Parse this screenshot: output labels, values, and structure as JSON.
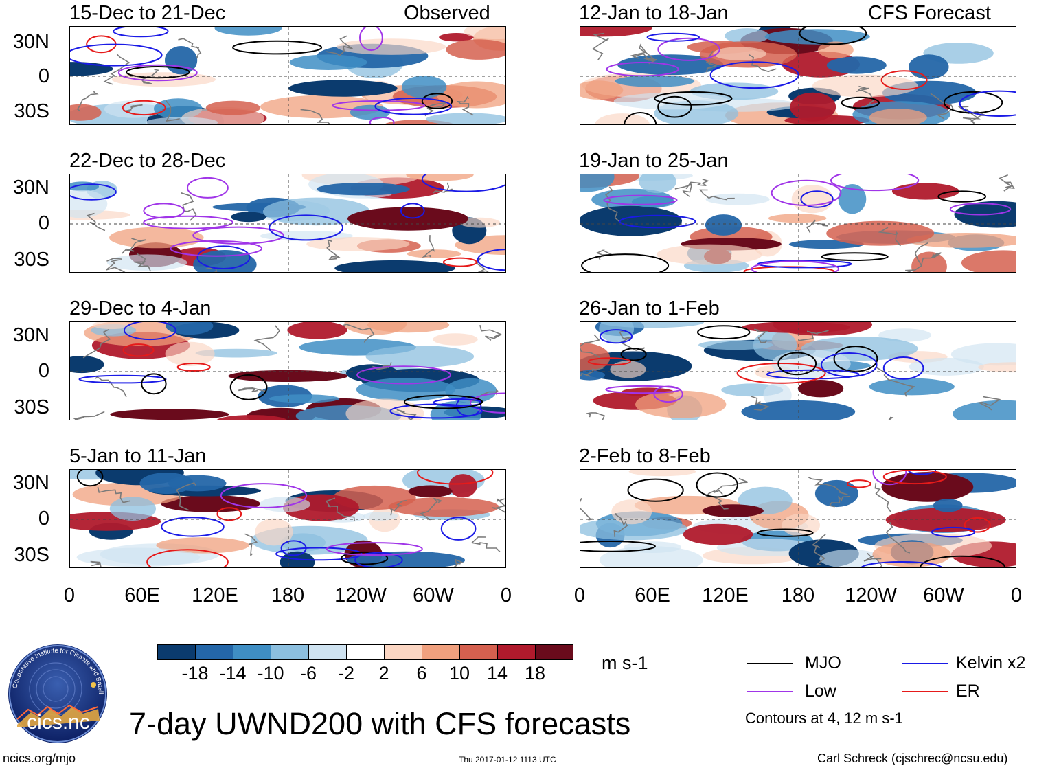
{
  "chart_data": {
    "type": "heatmap",
    "title": "7-day UWND200 with CFS forecasts",
    "variable": "UWND200",
    "units": "m s-1",
    "column_headers": {
      "left": "Observed",
      "right": "CFS Forecast"
    },
    "panels_left": [
      {
        "period": "15-Dec to 21-Dec"
      },
      {
        "period": "22-Dec to 28-Dec"
      },
      {
        "period": "29-Dec to 4-Jan"
      },
      {
        "period": "5-Jan to 11-Jan"
      }
    ],
    "panels_right": [
      {
        "period": "12-Jan to 18-Jan"
      },
      {
        "period": "19-Jan to 25-Jan"
      },
      {
        "period": "26-Jan to 1-Feb"
      },
      {
        "period": "2-Feb to 8-Feb"
      }
    ],
    "y_ticks": [
      "30N",
      "0",
      "30S"
    ],
    "x_ticks": [
      "0",
      "60E",
      "120E",
      "180",
      "120W",
      "60W",
      "0"
    ],
    "colorbar": {
      "labels": [
        "-18",
        "-14",
        "-10",
        "-6",
        "-2",
        "2",
        "6",
        "10",
        "14",
        "18"
      ],
      "colors": [
        "#0b3b6e",
        "#2466a8",
        "#3f8ec4",
        "#8cbfdf",
        "#cfe3f1",
        "#ffffff",
        "#fbd6c3",
        "#f0a07e",
        "#d5604f",
        "#b01a2c",
        "#6a0b1c"
      ]
    },
    "contours": {
      "note": "Contours at 4, 12 m s-1",
      "series": [
        {
          "name": "MJO",
          "color": "#000000"
        },
        {
          "name": "Kelvin x2",
          "color": "#1a1ae6"
        },
        {
          "name": "Low",
          "color": "#a035e8"
        },
        {
          "name": "ER",
          "color": "#e61a1a"
        }
      ]
    }
  },
  "footer": {
    "logo_text": "cics.nc",
    "logo_ring_text": "Cooperative Institute for Climate and Satellites",
    "url": "ncics.org/mjo",
    "timestamp": "Thu 2017-01-12 1113 UTC",
    "author": "Carl Schreck (cjschrec@ncsu.edu)"
  }
}
